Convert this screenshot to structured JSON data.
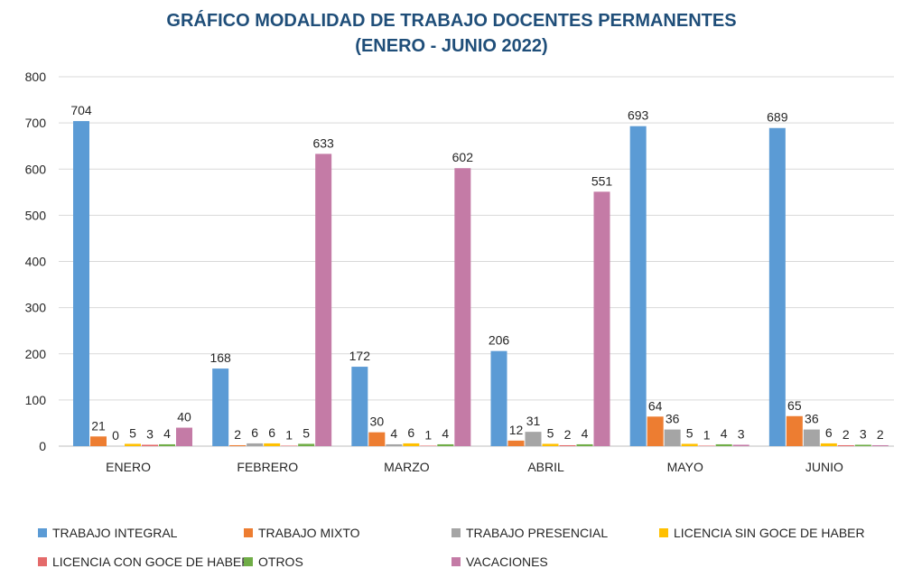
{
  "chart_data": {
    "type": "bar",
    "title": "GRÁFICO MODALIDAD DE TRABAJO DOCENTES PERMANENTES",
    "subtitle": "(ENERO - JUNIO 2022)",
    "categories": [
      "ENERO",
      "FEBRERO",
      "MARZO",
      "ABRIL",
      "MAYO",
      "JUNIO"
    ],
    "ylim": [
      0,
      800
    ],
    "yticks": [
      0,
      100,
      200,
      300,
      400,
      500,
      600,
      700,
      800
    ],
    "grid": true,
    "legend_position": "bottom",
    "series": [
      {
        "name": "TRABAJO INTEGRAL",
        "color": "#5b9bd5",
        "values": [
          704,
          168,
          172,
          206,
          693,
          689
        ]
      },
      {
        "name": "TRABAJO MIXTO",
        "color": "#ed7d31",
        "values": [
          21,
          2,
          30,
          12,
          64,
          65
        ]
      },
      {
        "name": "TRABAJO PRESENCIAL",
        "color": "#a5a5a5",
        "values": [
          0,
          6,
          4,
          31,
          36,
          36
        ]
      },
      {
        "name": "LICENCIA SIN GOCE DE HABER",
        "color": "#ffc000",
        "values": [
          5,
          6,
          6,
          5,
          5,
          6
        ]
      },
      {
        "name": "LICENCIA CON GOCE DE HABER",
        "color": "#e46a6a",
        "values": [
          3,
          1,
          1,
          2,
          1,
          2
        ]
      },
      {
        "name": "OTROS",
        "color": "#70ad47",
        "values": [
          4,
          5,
          4,
          4,
          4,
          3
        ]
      },
      {
        "name": "VACACIONES",
        "color": "#c47ba6",
        "values": [
          40,
          633,
          602,
          551,
          3,
          2
        ]
      }
    ]
  }
}
